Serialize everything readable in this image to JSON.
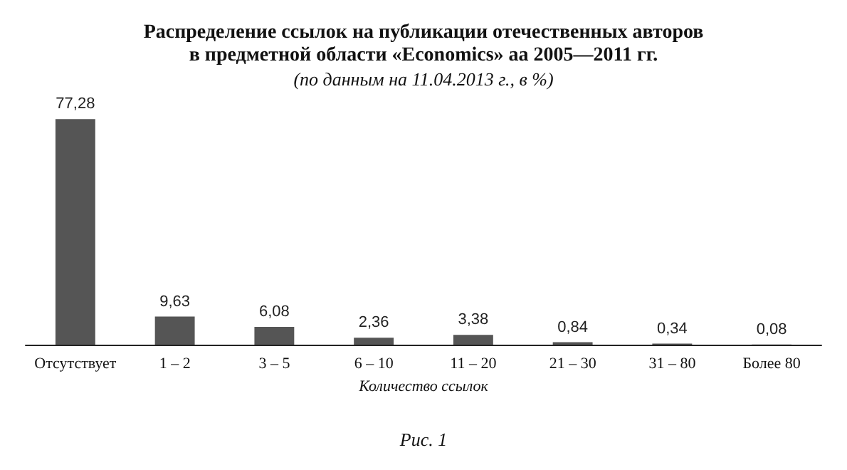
{
  "chart_data": {
    "type": "bar",
    "title": "Распределение ссылок на публикации отечественных авторов\nв предметной области «Economics» аа 2005—2011 гг.",
    "subtitle": "(по данным на 11.04.2013 г., в %)",
    "xlabel": "Количество ссылок",
    "annotations": [
      "Рис. 1"
    ],
    "categories": [
      "Отсутствует",
      "1 – 2",
      "3 – 5",
      "6 – 10",
      "11 – 20",
      "21 – 30",
      "31 – 80",
      "Более 80"
    ],
    "values": [
      77.28,
      9.63,
      6.08,
      2.36,
      3.38,
      0.84,
      0.34,
      0.08
    ],
    "value_labels": [
      "77,28",
      "9,63",
      "6,08",
      "2,36",
      "3,38",
      "0,84",
      "0,34",
      "0,08"
    ],
    "color": "#555555",
    "tick_labels": "x"
  }
}
